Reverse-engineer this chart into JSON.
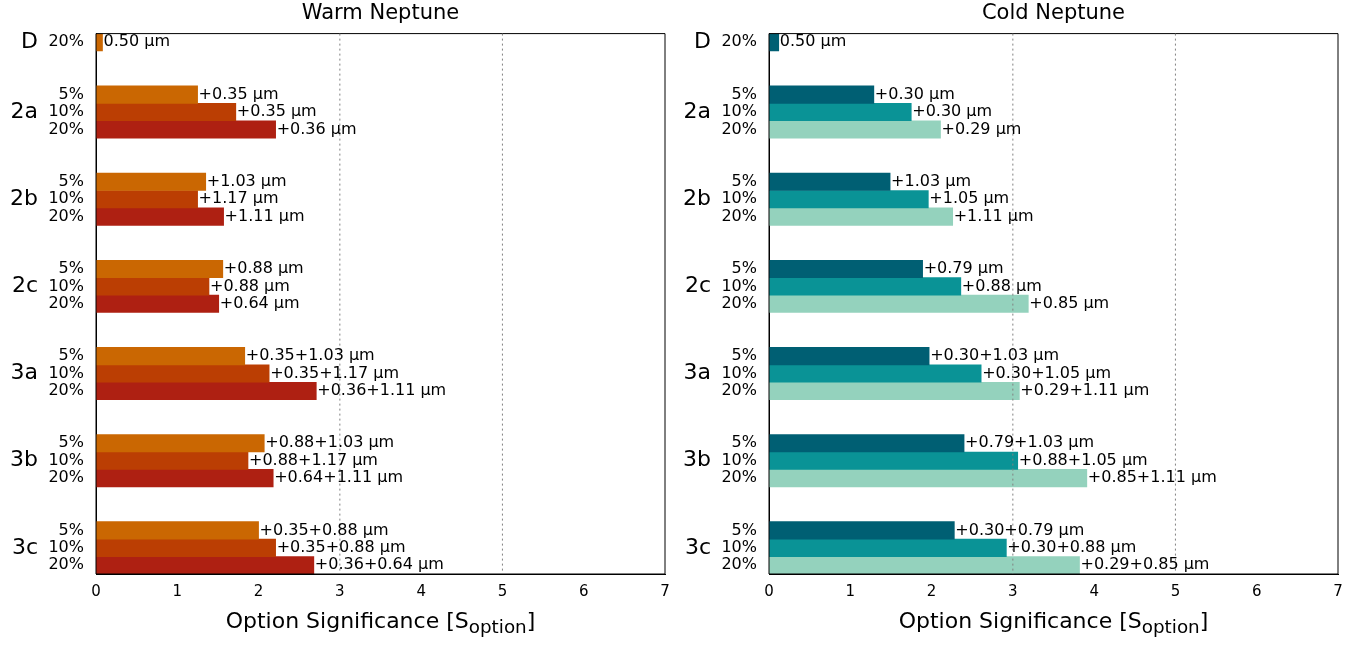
{
  "chart_data": [
    {
      "type": "bar",
      "orientation": "horizontal",
      "title": "Warm Neptune",
      "xlabel": "Option Significance [S$_{option}$]",
      "categories": [
        "20%",
        null,
        null,
        "5%",
        "10%",
        "20%",
        null,
        null,
        "5%",
        "10%",
        "20%",
        null,
        null,
        "5%",
        "10%",
        "20%",
        null,
        null,
        "5%",
        "10%",
        "20%",
        null,
        null,
        "5%",
        "10%",
        "20%",
        null,
        null,
        "5%",
        "10%",
        "20%"
      ],
      "xlim": [
        0,
        7
      ],
      "xticks": [
        0,
        1,
        2,
        3,
        4,
        5,
        6,
        7
      ],
      "grid": false,
      "legend": false,
      "ref_lines": [
        {
          "axis": "x",
          "value": 3,
          "color": "#808080",
          "line_style": "dotted"
        },
        {
          "axis": "x",
          "value": 5,
          "color": "#808080",
          "line_style": "dotted"
        }
      ],
      "series": [
        {
          "color": "#ca6702",
          "values": [
            0.08,
            null,
            null,
            1.25,
            null,
            null,
            null,
            null,
            1.35,
            null,
            null,
            null,
            null,
            1.56,
            null,
            null,
            null,
            null,
            1.83,
            null,
            null,
            null,
            null,
            2.07,
            null,
            null,
            null,
            null,
            2.0,
            null,
            null
          ]
        },
        {
          "color": "#bb3e03",
          "values": [
            null,
            null,
            null,
            null,
            1.72,
            null,
            null,
            null,
            null,
            1.25,
            null,
            null,
            null,
            null,
            1.39,
            null,
            null,
            null,
            null,
            2.13,
            null,
            null,
            null,
            null,
            1.87,
            null,
            null,
            null,
            null,
            2.21,
            null
          ]
        },
        {
          "color": "#ae2012",
          "values": [
            null,
            null,
            null,
            null,
            null,
            2.21,
            null,
            null,
            null,
            null,
            1.57,
            null,
            null,
            null,
            null,
            1.51,
            null,
            null,
            null,
            null,
            2.71,
            null,
            null,
            null,
            null,
            2.18,
            null,
            null,
            null,
            null,
            2.68
          ]
        }
      ],
      "annotations": [
        "D",
        "2a",
        "2b",
        "2c",
        "3a",
        "3b",
        "3c",
        {
          "text": "0.50 µm",
          "x": 0.08
        },
        {
          "text": "+0.35 µm",
          "x": 1.25
        },
        {
          "text": "+0.35 µm",
          "x": 1.72
        },
        {
          "text": "+0.36 µm",
          "x": 2.21
        },
        {
          "text": "+1.03 µm",
          "x": 1.35
        },
        {
          "text": "+1.17 µm",
          "x": 1.25
        },
        {
          "text": "+1.11 µm",
          "x": 1.57
        },
        {
          "text": "+0.88 µm",
          "x": 1.56
        },
        {
          "text": "+0.88 µm",
          "x": 1.39
        },
        {
          "text": "+0.64 µm",
          "x": 1.51
        },
        {
          "text": "+0.35+1.03 µm",
          "x": 1.83
        },
        {
          "text": "+0.35+1.17 µm",
          "x": 2.13
        },
        {
          "text": "+0.36+1.11 µm",
          "x": 2.71
        },
        {
          "text": "+0.88+1.03 µm",
          "x": 2.07
        },
        {
          "text": "+0.88+1.17 µm",
          "x": 1.87
        },
        {
          "text": "+0.64+1.11 µm",
          "x": 2.18
        },
        {
          "text": "+0.35+0.88 µm",
          "x": 2.0
        },
        {
          "text": "+0.35+0.88 µm",
          "x": 2.21
        },
        {
          "text": "+0.36+0.64 µm",
          "x": 2.68
        }
      ]
    },
    {
      "type": "bar",
      "orientation": "horizontal",
      "title": "Cold Neptune",
      "xlabel": "Option Significance [S$_{option}$]",
      "categories": [
        "20%",
        null,
        null,
        "5%",
        "10%",
        "20%",
        null,
        null,
        "5%",
        "10%",
        "20%",
        null,
        null,
        "5%",
        "10%",
        "20%",
        null,
        null,
        "5%",
        "10%",
        "20%",
        null,
        null,
        "5%",
        "10%",
        "20%",
        null,
        null,
        "5%",
        "10%",
        "20%"
      ],
      "xlim": [
        0,
        7
      ],
      "xticks": [
        0,
        1,
        2,
        3,
        4,
        5,
        6,
        7
      ],
      "grid": false,
      "legend": false,
      "ref_lines": [
        {
          "axis": "x",
          "value": 3,
          "color": "#808080",
          "line_style": "dotted"
        },
        {
          "axis": "x",
          "value": 5,
          "color": "#808080",
          "line_style": "dotted"
        }
      ],
      "series": [
        {
          "color": "#005f73",
          "values": [
            0.12,
            null,
            null,
            1.29,
            null,
            null,
            null,
            null,
            1.49,
            null,
            null,
            null,
            null,
            1.89,
            null,
            null,
            null,
            null,
            1.97,
            null,
            null,
            null,
            null,
            2.4,
            null,
            null,
            null,
            null,
            2.28,
            null,
            null
          ]
        },
        {
          "color": "#0a9396",
          "values": [
            null,
            null,
            null,
            null,
            1.75,
            null,
            null,
            null,
            null,
            1.96,
            null,
            null,
            null,
            null,
            2.36,
            null,
            null,
            null,
            null,
            2.61,
            null,
            null,
            null,
            null,
            3.06,
            null,
            null,
            null,
            null,
            2.92,
            null
          ]
        },
        {
          "color": "#94d2bd",
          "values": [
            null,
            null,
            null,
            null,
            null,
            2.11,
            null,
            null,
            null,
            null,
            2.26,
            null,
            null,
            null,
            null,
            3.19,
            null,
            null,
            null,
            null,
            3.08,
            null,
            null,
            null,
            null,
            3.91,
            null,
            null,
            null,
            null,
            3.82
          ]
        }
      ],
      "annotations": [
        "D",
        "2a",
        "2b",
        "2c",
        "3a",
        "3b",
        "3c",
        {
          "text": "0.50 µm",
          "x": 0.12
        },
        {
          "text": "+0.30 µm",
          "x": 1.29
        },
        {
          "text": "+0.30 µm",
          "x": 1.75
        },
        {
          "text": "+0.29 µm",
          "x": 2.11
        },
        {
          "text": "+1.03 µm",
          "x": 1.49
        },
        {
          "text": "+1.05 µm",
          "x": 1.96
        },
        {
          "text": "+1.11 µm",
          "x": 2.26
        },
        {
          "text": "+0.79 µm",
          "x": 1.89
        },
        {
          "text": "+0.88 µm",
          "x": 2.36
        },
        {
          "text": "+0.85 µm",
          "x": 3.19
        },
        {
          "text": "+0.30+1.03 µm",
          "x": 1.97
        },
        {
          "text": "+0.30+1.05 µm",
          "x": 2.61
        },
        {
          "text": "+0.29+1.11 µm",
          "x": 3.08
        },
        {
          "text": "+0.79+1.03 µm",
          "x": 2.4
        },
        {
          "text": "+0.88+1.05 µm",
          "x": 3.06
        },
        {
          "text": "+0.85+1.11 µm",
          "x": 3.91
        },
        {
          "text": "+0.30+0.79 µm",
          "x": 2.28
        },
        {
          "text": "+0.30+0.88 µm",
          "x": 2.92
        },
        {
          "text": "+0.29+0.85 µm",
          "x": 3.82
        }
      ]
    }
  ]
}
